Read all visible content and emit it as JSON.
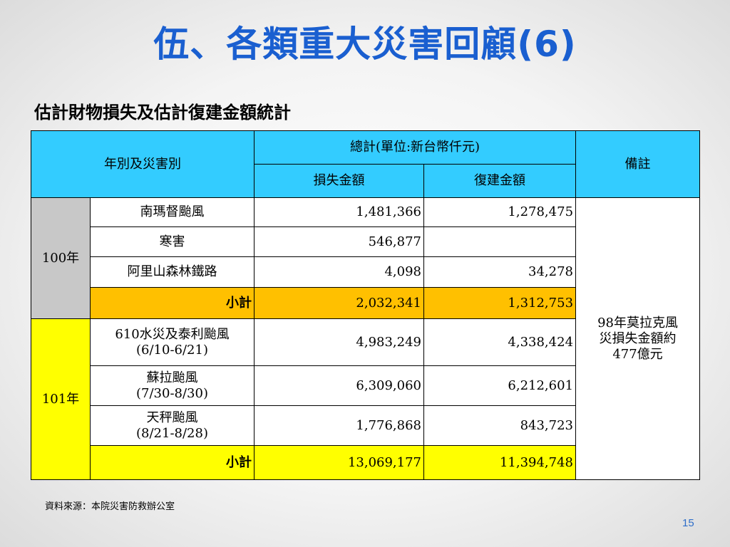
{
  "title": "伍、各類重大災害回顧(6)",
  "subtitle": "估計財物損失及估計復建金額統計",
  "table": {
    "header": {
      "year_disaster": "年別及災害別",
      "total": "總計(單位:新台幣仟元)",
      "loss": "損失金額",
      "rebuild": "復建金額",
      "remark": "備註"
    },
    "remark_text": "98年莫拉克風災損失金額約477億元",
    "groups": [
      {
        "year": "100年",
        "rows": [
          {
            "name": "南瑪督颱風",
            "loss": "1,481,366",
            "rebuild": "1,278,475"
          },
          {
            "name": "寒害",
            "loss": "546,877",
            "rebuild": ""
          },
          {
            "name": "阿里山森林鐵路",
            "loss": "4,098",
            "rebuild": "34,278"
          }
        ],
        "subtotal": {
          "label": "小計",
          "loss": "2,032,341",
          "rebuild": "1,312,753"
        }
      },
      {
        "year": "101年",
        "rows": [
          {
            "name": "610水災及泰利颱風",
            "date": "(6/10-6/21)",
            "loss": "4,983,249",
            "rebuild": "4,338,424"
          },
          {
            "name": "蘇拉颱風",
            "date": "(7/30-8/30)",
            "loss": "6,309,060",
            "rebuild": "6,212,601"
          },
          {
            "name": "天秤颱風",
            "date": "(8/21-8/28)",
            "loss": "1,776,868",
            "rebuild": "843,723"
          }
        ],
        "subtotal": {
          "label": "小計",
          "loss": "13,069,177",
          "rebuild": "11,394,748"
        }
      }
    ]
  },
  "source": "資料來源：本院災害防救辦公室",
  "page_number": "15"
}
